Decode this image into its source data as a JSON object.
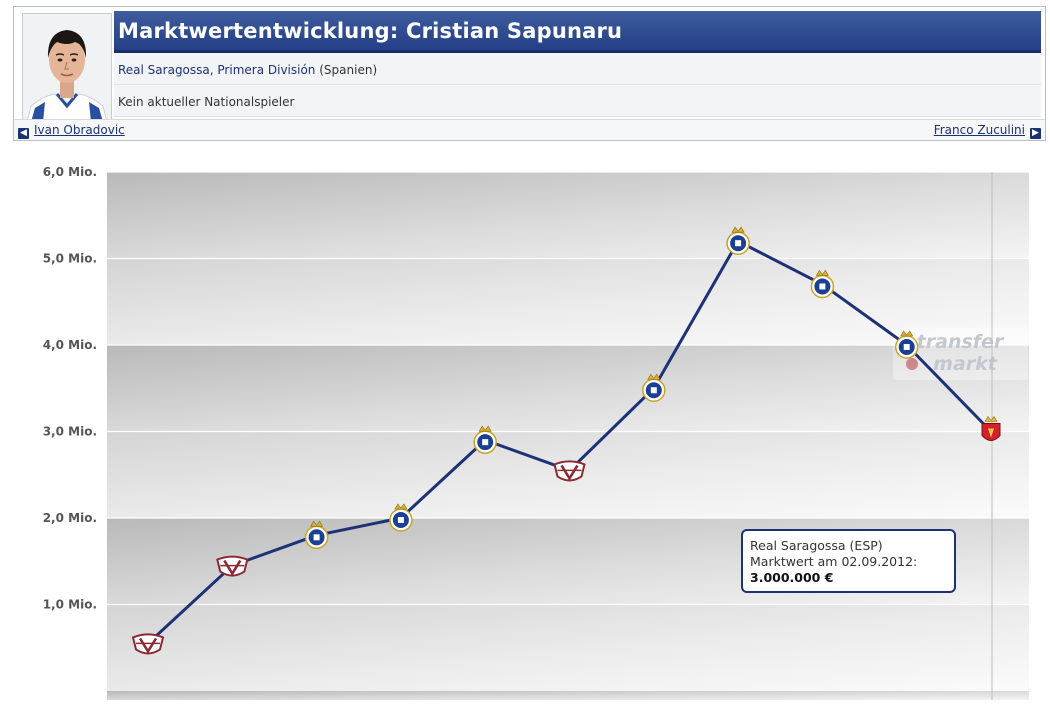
{
  "header": {
    "title": "Marktwertentwicklung: Cristian Sapunaru",
    "club": "Real Saragossa",
    "league": "Primera División",
    "country": "(Spanien)",
    "national": "Kein aktueller Nationalspieler",
    "prev_player": "Ivan Obradovic",
    "next_player": "Franco Zuculini"
  },
  "watermark": {
    "line1": "transfer",
    "line2": "markt"
  },
  "tooltip": {
    "club": "Real Saragossa (ESP)",
    "date_line": "Marktwert am 02.09.2012:",
    "value": "3.000.000 €"
  },
  "chart_data": {
    "type": "line",
    "title": "Marktwertentwicklung: Cristian Sapunaru",
    "ylim": [
      0,
      6000000
    ],
    "yticks": [
      {
        "value": 1000000,
        "label": "1,0 Mio."
      },
      {
        "value": 2000000,
        "label": "2,0 Mio."
      },
      {
        "value": 3000000,
        "label": "3,0 Mio."
      },
      {
        "value": 4000000,
        "label": "4,0 Mio."
      },
      {
        "value": 5000000,
        "label": "5,0 Mio."
      },
      {
        "value": 6000000,
        "label": "6,0 Mio."
      }
    ],
    "grid": true,
    "series": [
      {
        "values": [
          550000,
          1450000,
          1800000,
          2000000,
          2900000,
          2550000,
          3500000,
          5200000,
          4700000,
          4000000,
          3000000
        ],
        "clubs": [
          "rapid",
          "rapid",
          "porto",
          "porto",
          "porto",
          "rapid",
          "porto",
          "porto",
          "porto",
          "porto",
          "zaragoza"
        ],
        "color": "#1c3276"
      }
    ],
    "club_colors": {
      "rapid": "#8b2a35",
      "porto": "#1b3f94",
      "zaragoza": "#d4202a"
    }
  }
}
